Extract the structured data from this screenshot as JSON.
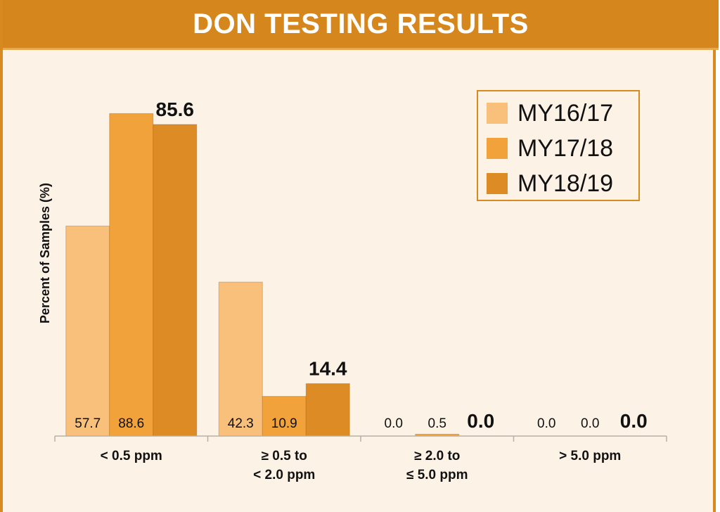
{
  "chart_data": {
    "type": "bar",
    "title": "DON TESTING RESULTS",
    "ylabel": "Percent of Samples (%)",
    "xlabel": "",
    "categories": [
      [
        "< 0.5 ppm"
      ],
      [
        "≥ 0.5 to",
        "< 2.0 ppm"
      ],
      [
        "≥ 2.0 to",
        "≤ 5.0 ppm"
      ],
      [
        "> 5.0 ppm"
      ]
    ],
    "series": [
      {
        "name": "MY16/17",
        "color": "#f9c07c",
        "values": [
          57.7,
          42.3,
          0.0,
          0.0
        ],
        "labels": [
          "57.7",
          "42.3",
          "0.0",
          "0.0"
        ]
      },
      {
        "name": "MY17/18",
        "color": "#f2a23a",
        "values": [
          88.6,
          10.9,
          0.5,
          0.0
        ],
        "labels": [
          "88.6",
          "10.9",
          "0.5",
          "0.0"
        ]
      },
      {
        "name": "MY18/19",
        "color": "#dd8b24",
        "values": [
          85.6,
          14.4,
          0.0,
          0.0
        ],
        "labels": [
          "85.6",
          "14.4",
          "0.0",
          "0.0"
        ]
      }
    ],
    "ylim": [
      0,
      100
    ],
    "grid": false,
    "legend_position": "top-right"
  }
}
